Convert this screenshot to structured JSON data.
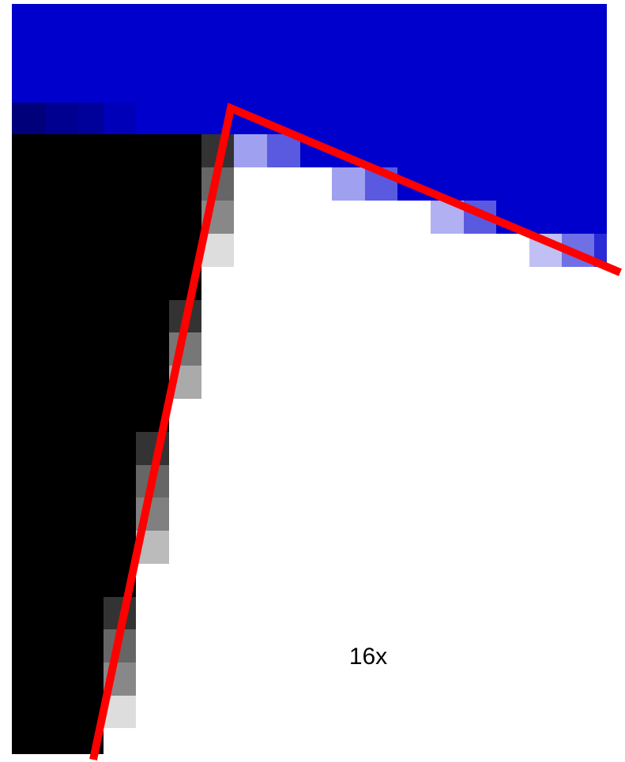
{
  "label": "16x"
}
